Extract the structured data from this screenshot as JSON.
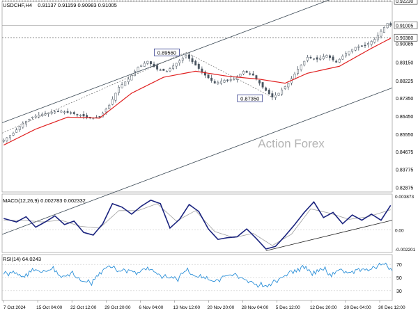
{
  "header": {
    "symbol": "USDCHF,H4",
    "ohlc": "0.91137 0.91159 0.90983 0.91005"
  },
  "watermark": "Action Forex",
  "colors": {
    "candle": "#4a5560",
    "ma": "#e02020",
    "macd": "#1a237e",
    "signal": "#a0a0a0",
    "rsi": "#2a8fd8",
    "channel": "#3c4a55",
    "current_price_box": "#ffffff",
    "label_box_border": "#1a237e"
  },
  "chart_data": [
    {
      "name": "price",
      "type": "candlestick",
      "symbol": "USDCHF",
      "timeframe": "H4",
      "ylim": [
        0.8265,
        0.922
      ],
      "yticks": [
        "0.91005",
        "0.90380",
        "0.90085",
        "0.89150",
        "0.88225",
        "0.87350",
        "0.86450",
        "0.85550",
        "0.84675",
        "0.83775",
        "0.82875"
      ],
      "top_label": "0.92230",
      "xticks": [
        "7 Oct 2024",
        "15 Oct 04:00",
        "22 Oct 12:00",
        "29 Oct 20:00",
        "6 Nov 04:00",
        "13 Nov 12:00",
        "20 Nov 20:00",
        "28 Nov 04:00",
        "5 Dec 12:00",
        "12 Dec 20:00",
        "20 Dec 04:00",
        "30 Dec 12:00"
      ],
      "close_path": [
        [
          0,
          0.8525
        ],
        [
          3,
          0.856
        ],
        [
          6,
          0.861
        ],
        [
          9,
          0.864
        ],
        [
          12,
          0.8655
        ],
        [
          15,
          0.8665
        ],
        [
          18,
          0.867
        ],
        [
          21,
          0.866
        ],
        [
          24,
          0.865
        ],
        [
          27,
          0.8635
        ],
        [
          30,
          0.864
        ],
        [
          33,
          0.87
        ],
        [
          36,
          0.879
        ],
        [
          39,
          0.883
        ],
        [
          42,
          0.889
        ],
        [
          45,
          0.892
        ],
        [
          48,
          0.888
        ],
        [
          51,
          0.887
        ],
        [
          54,
          0.891
        ],
        [
          57,
          0.895
        ],
        [
          60,
          0.89
        ],
        [
          63,
          0.885
        ],
        [
          66,
          0.881
        ],
        [
          69,
          0.8825
        ],
        [
          72,
          0.883
        ],
        [
          75,
          0.887
        ],
        [
          78,
          0.885
        ],
        [
          81,
          0.879
        ],
        [
          84,
          0.874
        ],
        [
          86,
          0.876
        ],
        [
          89,
          0.881
        ],
        [
          92,
          0.888
        ],
        [
          95,
          0.894
        ],
        [
          98,
          0.893
        ],
        [
          101,
          0.895
        ],
        [
          104,
          0.8915
        ],
        [
          107,
          0.896
        ],
        [
          110,
          0.899
        ],
        [
          113,
          0.9
        ],
        [
          116,
          0.903
        ],
        [
          118,
          0.907
        ],
        [
          119,
          0.909
        ],
        [
          120,
          0.911
        ],
        [
          121,
          0.91
        ]
      ],
      "moving_average_path": [
        [
          0,
          0.85
        ],
        [
          10,
          0.858
        ],
        [
          20,
          0.864
        ],
        [
          30,
          0.8635
        ],
        [
          40,
          0.876
        ],
        [
          50,
          0.884
        ],
        [
          60,
          0.887
        ],
        [
          70,
          0.8845
        ],
        [
          80,
          0.883
        ],
        [
          88,
          0.881
        ],
        [
          95,
          0.886
        ],
        [
          105,
          0.8895
        ],
        [
          115,
          0.8985
        ],
        [
          121,
          0.9035
        ]
      ],
      "annotations": [
        {
          "label": "0.89560",
          "type": "high"
        },
        {
          "label": "0.87350",
          "type": "low"
        }
      ],
      "horizontal_levels": [
        0.9223,
        0.91,
        0.9038
      ]
    },
    {
      "name": "macd",
      "type": "line",
      "title": "MACD(12,26,9) 0.002783 0.002332",
      "ylim": [
        -0.0026,
        0.0041
      ],
      "yticks": [
        "0.003873",
        "0.00",
        "-0.002201"
      ],
      "series": [
        {
          "name": "MACD",
          "points": [
            [
              0,
              0.0013
            ],
            [
              4,
              0.0009
            ],
            [
              7,
              0.0015
            ],
            [
              10,
              0.0003
            ],
            [
              13,
              0.0009
            ],
            [
              16,
              0.0016
            ],
            [
              19,
              0.0006
            ],
            [
              22,
              0.001
            ],
            [
              25,
              -0.0003
            ],
            [
              28,
              -0.0006
            ],
            [
              31,
              0.0007
            ],
            [
              34,
              0.003
            ],
            [
              37,
              0.0026
            ],
            [
              40,
              0.0018
            ],
            [
              43,
              0.0027
            ],
            [
              46,
              0.0034
            ],
            [
              49,
              0.003
            ],
            [
              52,
              0.0002
            ],
            [
              55,
              0.0012
            ],
            [
              58,
              0.0029
            ],
            [
              61,
              0.0021
            ],
            [
              64,
              0.0001
            ],
            [
              67,
              -0.0011
            ],
            [
              70,
              -0.0009
            ],
            [
              73,
              -0.0008
            ],
            [
              76,
              0.0001
            ],
            [
              79,
              -0.001
            ],
            [
              82,
              -0.0022
            ],
            [
              85,
              -0.0019
            ],
            [
              88,
              -0.0007
            ],
            [
              91,
              0.0006
            ],
            [
              94,
              0.002
            ],
            [
              97,
              0.0032
            ],
            [
              100,
              0.0014
            ],
            [
              103,
              0.002
            ],
            [
              106,
              0.0007
            ],
            [
              109,
              0.0017
            ],
            [
              112,
              0.0011
            ],
            [
              115,
              0.0018
            ],
            [
              118,
              0.0011
            ],
            [
              121,
              0.0028
            ]
          ]
        },
        {
          "name": "Signal",
          "points": [
            [
              0,
              0.0011
            ],
            [
              6,
              0.0011
            ],
            [
              12,
              0.0009
            ],
            [
              18,
              0.0011
            ],
            [
              24,
              0.0004
            ],
            [
              30,
              0.0002
            ],
            [
              36,
              0.0022
            ],
            [
              42,
              0.0022
            ],
            [
              48,
              0.003
            ],
            [
              54,
              0.001
            ],
            [
              60,
              0.0022
            ],
            [
              66,
              -0.0002
            ],
            [
              72,
              -0.0009
            ],
            [
              78,
              -0.0004
            ],
            [
              84,
              -0.0018
            ],
            [
              90,
              -0.0005
            ],
            [
              96,
              0.0024
            ],
            [
              102,
              0.0019
            ],
            [
              108,
              0.0012
            ],
            [
              114,
              0.0015
            ],
            [
              121,
              0.0023
            ]
          ]
        }
      ]
    },
    {
      "name": "rsi",
      "type": "line",
      "title": "RSI(14) 64.0243",
      "ylim": [
        15,
        85
      ],
      "yticks": [
        "70",
        "50",
        "30"
      ],
      "series": [
        {
          "name": "RSI",
          "points": [
            [
              0,
              55
            ],
            [
              3,
              60
            ],
            [
              6,
              52
            ],
            [
              9,
              64
            ],
            [
              12,
              58
            ],
            [
              15,
              63
            ],
            [
              18,
              50
            ],
            [
              21,
              57
            ],
            [
              24,
              45
            ],
            [
              27,
              42
            ],
            [
              30,
              58
            ],
            [
              33,
              68
            ],
            [
              36,
              60
            ],
            [
              39,
              62
            ],
            [
              42,
              58
            ],
            [
              45,
              66
            ],
            [
              48,
              55
            ],
            [
              51,
              50
            ],
            [
              54,
              48
            ],
            [
              57,
              60
            ],
            [
              60,
              52
            ],
            [
              63,
              48
            ],
            [
              66,
              44
            ],
            [
              69,
              52
            ],
            [
              72,
              55
            ],
            [
              75,
              48
            ],
            [
              78,
              42
            ],
            [
              81,
              36
            ],
            [
              84,
              42
            ],
            [
              87,
              50
            ],
            [
              90,
              60
            ],
            [
              93,
              66
            ],
            [
              96,
              58
            ],
            [
              99,
              64
            ],
            [
              102,
              56
            ],
            [
              105,
              62
            ],
            [
              108,
              58
            ],
            [
              111,
              64
            ],
            [
              114,
              60
            ],
            [
              117,
              68
            ],
            [
              119,
              70
            ],
            [
              121,
              64
            ]
          ]
        }
      ]
    }
  ]
}
